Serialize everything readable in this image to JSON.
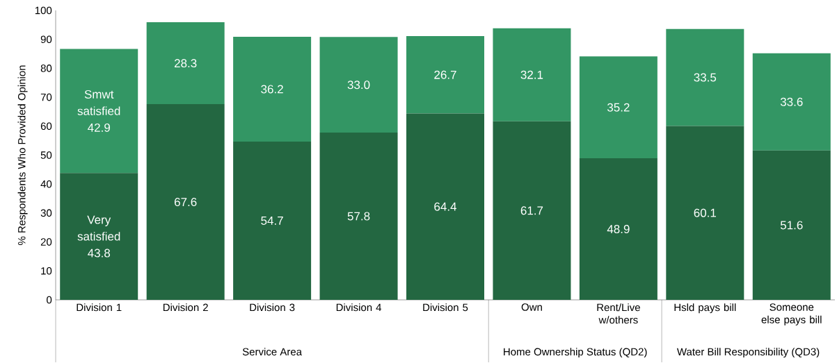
{
  "chart_data": {
    "type": "bar",
    "stacked": true,
    "ylabel": "% Respondents Who Provided Opinion",
    "categories": [
      "Division 1",
      "Division 2",
      "Division 3",
      "Division 4",
      "Division 5",
      "Own",
      "Rent/Live w/others",
      "Hsld pays bill",
      "Someone else pays bill"
    ],
    "series": [
      {
        "name": "Very satisfied",
        "color": "#236741",
        "values": [
          43.8,
          67.6,
          54.7,
          57.8,
          64.4,
          61.7,
          48.9,
          60.1,
          51.6
        ],
        "value_labels": [
          "43.8",
          "67.6",
          "54.7",
          "57.8",
          "64.4",
          "61.7",
          "48.9",
          "60.1",
          "51.6"
        ]
      },
      {
        "name": "Smwt satisfied",
        "color": "#339664",
        "values": [
          42.9,
          28.3,
          36.2,
          33.0,
          26.7,
          32.1,
          35.2,
          33.5,
          33.6
        ],
        "value_labels": [
          "42.9",
          "28.3",
          "36.2",
          "33.0",
          "26.7",
          "32.1",
          "35.2",
          "33.5",
          "33.6"
        ]
      }
    ],
    "ylim": [
      0,
      100
    ],
    "yticks": [
      0,
      10,
      20,
      30,
      40,
      50,
      60,
      70,
      80,
      90,
      100
    ],
    "legend": false,
    "grid": false,
    "annotations": [
      "Service Area",
      "Home Ownership Status (QD2)",
      "Water Bill Responsibility (QD3)"
    ]
  }
}
